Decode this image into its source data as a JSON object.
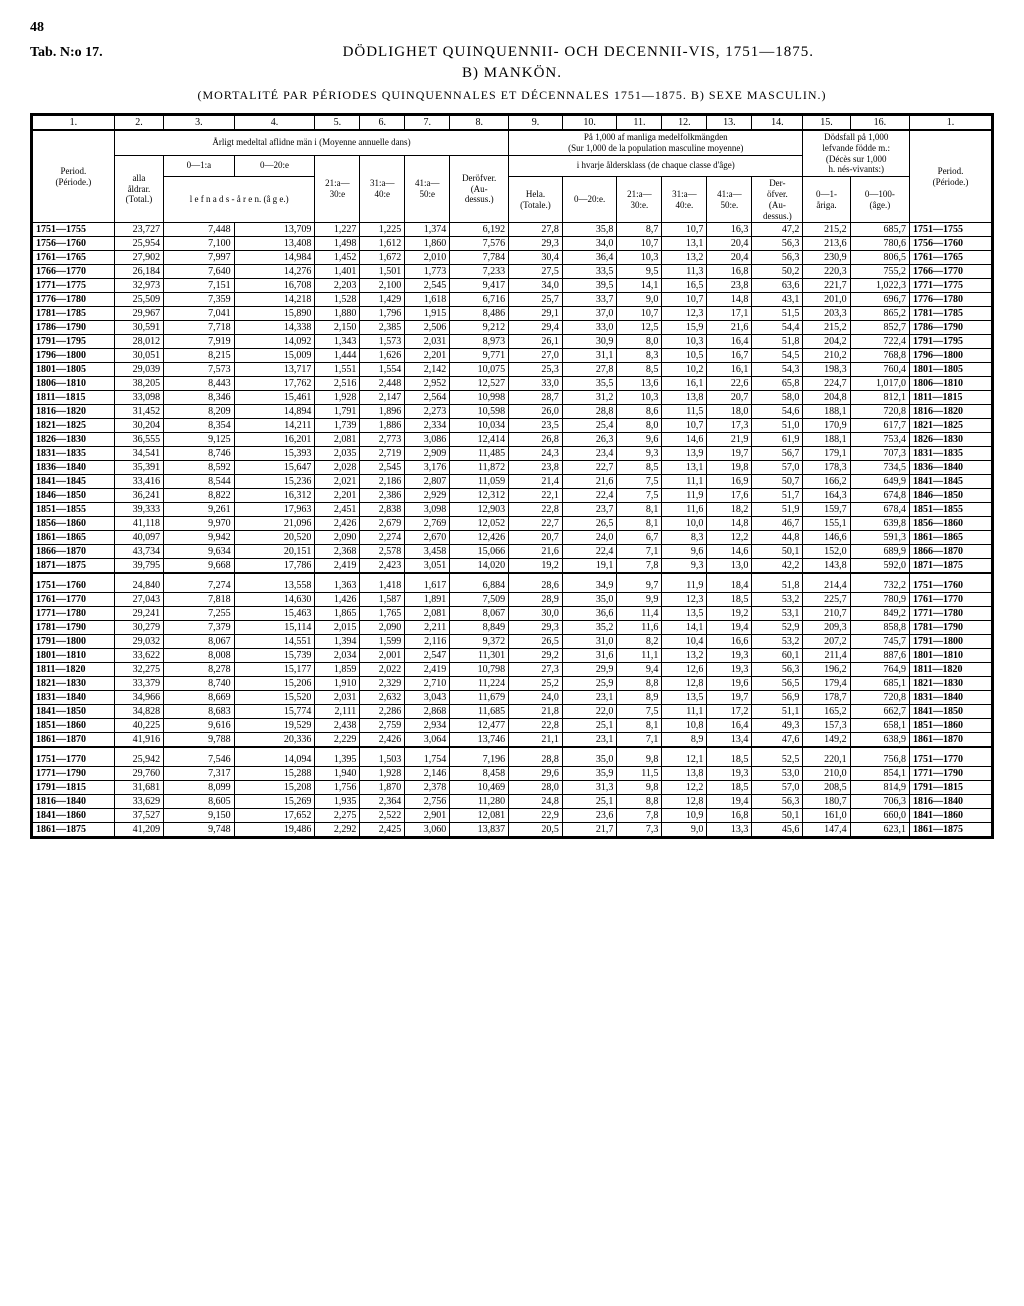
{
  "page_number": "48",
  "tab_label": "Tab. N:o 17.",
  "title": "DÖDLIGHET QUINQUENNII- OCH DECENNII-VIS, 1751—1875.",
  "subtitle": "B) MANKÖN.",
  "french_subtitle": "(MORTALITÉ PAR PÉRIODES QUINQUENNALES ET DÉCENNALES 1751—1875.  B) SEXE MASCULIN.)",
  "column_numbers": [
    "1.",
    "2.",
    "3.",
    "4.",
    "5.",
    "6.",
    "7.",
    "8.",
    "9.",
    "10.",
    "11.",
    "12.",
    "13.",
    "14.",
    "15.",
    "16.",
    "1."
  ],
  "header_period": "Period.",
  "header_period_sub": "(Période.)",
  "header_group1": "Årligt medeltal aflidne män i  (Moyenne annuelle dans)",
  "header_group2_top": "På 1,000 af manliga medelfolkmängden",
  "header_group2_bot": "(Sur 1,000 de la population masculine moyenne)",
  "header_group2_sub": "i hvarje åldersklass (de chaque classe d'âge)",
  "header_group3_top": "Dödsfall på 1,000",
  "header_group3_mid": "lefvande födde m.:",
  "header_group3_bot": "(Décès sur 1,000",
  "header_group3_bot2": "h. nés-vivants:)",
  "col_labels": {
    "c2": "alla\nåldrar.\n(Total.)",
    "c3": "0—1:a",
    "c4": "0—20:e",
    "c45sub": "l e f n a d s - å r e n.   (â g e.)",
    "c5": "21:a—\n30:e",
    "c6": "31:a—\n40:e",
    "c7": "41:a—\n50:e",
    "c8": "Deröfver.\n(Au-\ndessus.)",
    "c9": "Hela.\n(Totale.)",
    "c10": "0—20:e.",
    "c11": "21:a—\n30:e.",
    "c12": "31:a—\n40:e.",
    "c13": "41:a—\n50:e.",
    "c14": "Der-\nöfver.\n(Au-\ndessus.)",
    "c15": "0—1-\n\nåriga.",
    "c16": "0—100-\n\n(âge.)"
  },
  "sections": [
    {
      "rows": [
        [
          "1751—1755",
          "23,727",
          "7,448",
          "13,709",
          "1,227",
          "1,225",
          "1,374",
          "6,192",
          "27,8",
          "35,8",
          "8,7",
          "10,7",
          "16,3",
          "47,2",
          "215,2",
          "685,7",
          "1751—1755"
        ],
        [
          "1756—1760",
          "25,954",
          "7,100",
          "13,408",
          "1,498",
          "1,612",
          "1,860",
          "7,576",
          "29,3",
          "34,0",
          "10,7",
          "13,1",
          "20,4",
          "56,3",
          "213,6",
          "780,6",
          "1756—1760"
        ],
        [
          "1761—1765",
          "27,902",
          "7,997",
          "14,984",
          "1,452",
          "1,672",
          "2,010",
          "7,784",
          "30,4",
          "36,4",
          "10,3",
          "13,2",
          "20,4",
          "56,3",
          "230,9",
          "806,5",
          "1761—1765"
        ],
        [
          "1766—1770",
          "26,184",
          "7,640",
          "14,276",
          "1,401",
          "1,501",
          "1,773",
          "7,233",
          "27,5",
          "33,5",
          "9,5",
          "11,3",
          "16,8",
          "50,2",
          "220,3",
          "755,2",
          "1766—1770"
        ],
        [
          "1771—1775",
          "32,973",
          "7,151",
          "16,708",
          "2,203",
          "2,100",
          "2,545",
          "9,417",
          "34,0",
          "39,5",
          "14,1",
          "16,5",
          "23,8",
          "63,6",
          "221,7",
          "1,022,3",
          "1771—1775"
        ],
        [
          "1776—1780",
          "25,509",
          "7,359",
          "14,218",
          "1,528",
          "1,429",
          "1,618",
          "6,716",
          "25,7",
          "33,7",
          "9,0",
          "10,7",
          "14,8",
          "43,1",
          "201,0",
          "696,7",
          "1776—1780"
        ],
        [
          "1781—1785",
          "29,967",
          "7,041",
          "15,890",
          "1,880",
          "1,796",
          "1,915",
          "8,486",
          "29,1",
          "37,0",
          "10,7",
          "12,3",
          "17,1",
          "51,5",
          "203,3",
          "865,2",
          "1781—1785"
        ],
        [
          "1786—1790",
          "30,591",
          "7,718",
          "14,338",
          "2,150",
          "2,385",
          "2,506",
          "9,212",
          "29,4",
          "33,0",
          "12,5",
          "15,9",
          "21,6",
          "54,4",
          "215,2",
          "852,7",
          "1786—1790"
        ],
        [
          "1791—1795",
          "28,012",
          "7,919",
          "14,092",
          "1,343",
          "1,573",
          "2,031",
          "8,973",
          "26,1",
          "30,9",
          "8,0",
          "10,3",
          "16,4",
          "51,8",
          "204,2",
          "722,4",
          "1791—1795"
        ],
        [
          "1796—1800",
          "30,051",
          "8,215",
          "15,009",
          "1,444",
          "1,626",
          "2,201",
          "9,771",
          "27,0",
          "31,1",
          "8,3",
          "10,5",
          "16,7",
          "54,5",
          "210,2",
          "768,8",
          "1796—1800"
        ],
        [
          "1801—1805",
          "29,039",
          "7,573",
          "13,717",
          "1,551",
          "1,554",
          "2,142",
          "10,075",
          "25,3",
          "27,8",
          "8,5",
          "10,2",
          "16,1",
          "54,3",
          "198,3",
          "760,4",
          "1801—1805"
        ],
        [
          "1806—1810",
          "38,205",
          "8,443",
          "17,762",
          "2,516",
          "2,448",
          "2,952",
          "12,527",
          "33,0",
          "35,5",
          "13,6",
          "16,1",
          "22,6",
          "65,8",
          "224,7",
          "1,017,0",
          "1806—1810"
        ],
        [
          "1811—1815",
          "33,098",
          "8,346",
          "15,461",
          "1,928",
          "2,147",
          "2,564",
          "10,998",
          "28,7",
          "31,2",
          "10,3",
          "13,8",
          "20,7",
          "58,0",
          "204,8",
          "812,1",
          "1811—1815"
        ],
        [
          "1816—1820",
          "31,452",
          "8,209",
          "14,894",
          "1,791",
          "1,896",
          "2,273",
          "10,598",
          "26,0",
          "28,8",
          "8,6",
          "11,5",
          "18,0",
          "54,6",
          "188,1",
          "720,8",
          "1816—1820"
        ],
        [
          "1821—1825",
          "30,204",
          "8,354",
          "14,211",
          "1,739",
          "1,886",
          "2,334",
          "10,034",
          "23,5",
          "25,4",
          "8,0",
          "10,7",
          "17,3",
          "51,0",
          "170,9",
          "617,7",
          "1821—1825"
        ],
        [
          "1826—1830",
          "36,555",
          "9,125",
          "16,201",
          "2,081",
          "2,773",
          "3,086",
          "12,414",
          "26,8",
          "26,3",
          "9,6",
          "14,6",
          "21,9",
          "61,9",
          "188,1",
          "753,4",
          "1826—1830"
        ],
        [
          "1831—1835",
          "34,541",
          "8,746",
          "15,393",
          "2,035",
          "2,719",
          "2,909",
          "11,485",
          "24,3",
          "23,4",
          "9,3",
          "13,9",
          "19,7",
          "56,7",
          "179,1",
          "707,3",
          "1831—1835"
        ],
        [
          "1836—1840",
          "35,391",
          "8,592",
          "15,647",
          "2,028",
          "2,545",
          "3,176",
          "11,872",
          "23,8",
          "22,7",
          "8,5",
          "13,1",
          "19,8",
          "57,0",
          "178,3",
          "734,5",
          "1836—1840"
        ],
        [
          "1841—1845",
          "33,416",
          "8,544",
          "15,236",
          "2,021",
          "2,186",
          "2,807",
          "11,059",
          "21,4",
          "21,6",
          "7,5",
          "11,1",
          "16,9",
          "50,7",
          "166,2",
          "649,9",
          "1841—1845"
        ],
        [
          "1846—1850",
          "36,241",
          "8,822",
          "16,312",
          "2,201",
          "2,386",
          "2,929",
          "12,312",
          "22,1",
          "22,4",
          "7,5",
          "11,9",
          "17,6",
          "51,7",
          "164,3",
          "674,8",
          "1846—1850"
        ],
        [
          "1851—1855",
          "39,333",
          "9,261",
          "17,963",
          "2,451",
          "2,838",
          "3,098",
          "12,903",
          "22,8",
          "23,7",
          "8,1",
          "11,6",
          "18,2",
          "51,9",
          "159,7",
          "678,4",
          "1851—1855"
        ],
        [
          "1856—1860",
          "41,118",
          "9,970",
          "21,096",
          "2,426",
          "2,679",
          "2,769",
          "12,052",
          "22,7",
          "26,5",
          "8,1",
          "10,0",
          "14,8",
          "46,7",
          "155,1",
          "639,8",
          "1856—1860"
        ],
        [
          "1861—1865",
          "40,097",
          "9,942",
          "20,520",
          "2,090",
          "2,274",
          "2,670",
          "12,426",
          "20,7",
          "24,0",
          "6,7",
          "8,3",
          "12,2",
          "44,8",
          "146,6",
          "591,3",
          "1861—1865"
        ],
        [
          "1866—1870",
          "43,734",
          "9,634",
          "20,151",
          "2,368",
          "2,578",
          "3,458",
          "15,066",
          "21,6",
          "22,4",
          "7,1",
          "9,6",
          "14,6",
          "50,1",
          "152,0",
          "689,9",
          "1866—1870"
        ],
        [
          "1871—1875",
          "39,795",
          "9,668",
          "17,786",
          "2,419",
          "2,423",
          "3,051",
          "14,020",
          "19,2",
          "19,1",
          "7,8",
          "9,3",
          "13,0",
          "42,2",
          "143,8",
          "592,0",
          "1871—1875"
        ]
      ]
    },
    {
      "rows": [
        [
          "1751—1760",
          "24,840",
          "7,274",
          "13,558",
          "1,363",
          "1,418",
          "1,617",
          "6,884",
          "28,6",
          "34,9",
          "9,7",
          "11,9",
          "18,4",
          "51,8",
          "214,4",
          "732,2",
          "1751—1760"
        ],
        [
          "1761—1770",
          "27,043",
          "7,818",
          "14,630",
          "1,426",
          "1,587",
          "1,891",
          "7,509",
          "28,9",
          "35,0",
          "9,9",
          "12,3",
          "18,5",
          "53,2",
          "225,7",
          "780,9",
          "1761—1770"
        ],
        [
          "1771—1780",
          "29,241",
          "7,255",
          "15,463",
          "1,865",
          "1,765",
          "2,081",
          "8,067",
          "30,0",
          "36,6",
          "11,4",
          "13,5",
          "19,2",
          "53,1",
          "210,7",
          "849,2",
          "1771—1780"
        ],
        [
          "1781—1790",
          "30,279",
          "7,379",
          "15,114",
          "2,015",
          "2,090",
          "2,211",
          "8,849",
          "29,3",
          "35,2",
          "11,6",
          "14,1",
          "19,4",
          "52,9",
          "209,3",
          "858,8",
          "1781—1790"
        ],
        [
          "1791—1800",
          "29,032",
          "8,067",
          "14,551",
          "1,394",
          "1,599",
          "2,116",
          "9,372",
          "26,5",
          "31,0",
          "8,2",
          "10,4",
          "16,6",
          "53,2",
          "207,2",
          "745,7",
          "1791—1800"
        ],
        [
          "1801—1810",
          "33,622",
          "8,008",
          "15,739",
          "2,034",
          "2,001",
          "2,547",
          "11,301",
          "29,2",
          "31,6",
          "11,1",
          "13,2",
          "19,3",
          "60,1",
          "211,4",
          "887,6",
          "1801—1810"
        ],
        [
          "1811—1820",
          "32,275",
          "8,278",
          "15,177",
          "1,859",
          "2,022",
          "2,419",
          "10,798",
          "27,3",
          "29,9",
          "9,4",
          "12,6",
          "19,3",
          "56,3",
          "196,2",
          "764,9",
          "1811—1820"
        ],
        [
          "1821—1830",
          "33,379",
          "8,740",
          "15,206",
          "1,910",
          "2,329",
          "2,710",
          "11,224",
          "25,2",
          "25,9",
          "8,8",
          "12,8",
          "19,6",
          "56,5",
          "179,4",
          "685,1",
          "1821—1830"
        ],
        [
          "1831—1840",
          "34,966",
          "8,669",
          "15,520",
          "2,031",
          "2,632",
          "3,043",
          "11,679",
          "24,0",
          "23,1",
          "8,9",
          "13,5",
          "19,7",
          "56,9",
          "178,7",
          "720,8",
          "1831—1840"
        ],
        [
          "1841—1850",
          "34,828",
          "8,683",
          "15,774",
          "2,111",
          "2,286",
          "2,868",
          "11,685",
          "21,8",
          "22,0",
          "7,5",
          "11,1",
          "17,2",
          "51,1",
          "165,2",
          "662,7",
          "1841—1850"
        ],
        [
          "1851—1860",
          "40,225",
          "9,616",
          "19,529",
          "2,438",
          "2,759",
          "2,934",
          "12,477",
          "22,8",
          "25,1",
          "8,1",
          "10,8",
          "16,4",
          "49,3",
          "157,3",
          "658,1",
          "1851—1860"
        ],
        [
          "1861—1870",
          "41,916",
          "9,788",
          "20,336",
          "2,229",
          "2,426",
          "3,064",
          "13,746",
          "21,1",
          "23,1",
          "7,1",
          "8,9",
          "13,4",
          "47,6",
          "149,2",
          "638,9",
          "1861—1870"
        ]
      ]
    },
    {
      "rows": [
        [
          "1751—1770",
          "25,942",
          "7,546",
          "14,094",
          "1,395",
          "1,503",
          "1,754",
          "7,196",
          "28,8",
          "35,0",
          "9,8",
          "12,1",
          "18,5",
          "52,5",
          "220,1",
          "756,8",
          "1751—1770"
        ],
        [
          "1771—1790",
          "29,760",
          "7,317",
          "15,288",
          "1,940",
          "1,928",
          "2,146",
          "8,458",
          "29,6",
          "35,9",
          "11,5",
          "13,8",
          "19,3",
          "53,0",
          "210,0",
          "854,1",
          "1771—1790"
        ],
        [
          "1791—1815",
          "31,681",
          "8,099",
          "15,208",
          "1,756",
          "1,870",
          "2,378",
          "10,469",
          "28,0",
          "31,3",
          "9,8",
          "12,2",
          "18,5",
          "57,0",
          "208,5",
          "814,9",
          "1791—1815"
        ],
        [
          "1816—1840",
          "33,629",
          "8,605",
          "15,269",
          "1,935",
          "2,364",
          "2,756",
          "11,280",
          "24,8",
          "25,1",
          "8,8",
          "12,8",
          "19,4",
          "56,3",
          "180,7",
          "706,3",
          "1816—1840"
        ],
        [
          "1841—1860",
          "37,527",
          "9,150",
          "17,652",
          "2,275",
          "2,522",
          "2,901",
          "12,081",
          "22,9",
          "23,6",
          "7,8",
          "10,9",
          "16,8",
          "50,1",
          "161,0",
          "660,0",
          "1841—1860"
        ],
        [
          "1861—1875",
          "41,209",
          "9,748",
          "19,486",
          "2,292",
          "2,425",
          "3,060",
          "13,837",
          "20,5",
          "21,7",
          "7,3",
          "9,0",
          "13,3",
          "45,6",
          "147,4",
          "623,1",
          "1861—1875"
        ]
      ]
    }
  ]
}
